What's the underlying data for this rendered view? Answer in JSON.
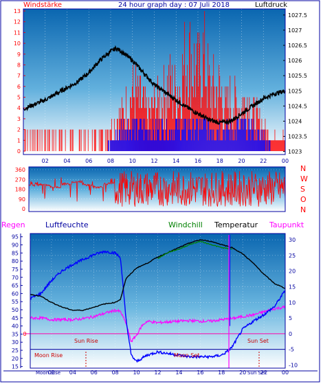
{
  "header": {
    "title": "24 hour graph day : 07 Juli 2018",
    "left_label": "Windstärke",
    "right_label": "Luftdruck"
  },
  "colors": {
    "frame": "#0000a0",
    "wind": "#ff0000",
    "gust_blue": "#0000ff",
    "pressure": "#000000",
    "direction": "#ff0000",
    "humidity": "#0000ff",
    "windchill": "#008000",
    "temperature": "#000000",
    "dewpoint": "#ff00ff",
    "rain": "#ff0000",
    "zero_line": "#ff00aa",
    "sky_top": "#0a66b0",
    "sky_bottom": "#ffffff"
  },
  "chart_data": [
    {
      "type": "line",
      "name_hint": "wind-pressure",
      "x_ticks": [
        "02",
        "04",
        "06",
        "08",
        "10",
        "12",
        "14",
        "16",
        "18",
        "20",
        "22",
        "00"
      ],
      "left_axis": {
        "labels": [
          "0",
          "1",
          "2",
          "3",
          "4",
          "5",
          "6",
          "7",
          "8",
          "9",
          "10",
          "11",
          "12",
          "13"
        ],
        "ylim": [
          0,
          13
        ]
      },
      "right_axis": {
        "labels": [
          "1023",
          "1023.5",
          "1024",
          "1024.5",
          "1025",
          "1025.5",
          "1026",
          "1026.5",
          "1027",
          "1027.5"
        ],
        "ylim": [
          1022.9,
          1027.7
        ]
      },
      "pressure": {
        "x": [
          0,
          1,
          2,
          3,
          4,
          5,
          6,
          7,
          8,
          8.5,
          9,
          10,
          11,
          12,
          13,
          14,
          15,
          16,
          17,
          18,
          19,
          20,
          21,
          22,
          23,
          24
        ],
        "y": [
          1024.4,
          1024.55,
          1024.7,
          1024.9,
          1025.1,
          1025.3,
          1025.6,
          1026.0,
          1026.3,
          1026.4,
          1026.3,
          1026.0,
          1025.6,
          1025.2,
          1024.95,
          1024.7,
          1024.45,
          1024.25,
          1024.05,
          1023.95,
          1024.0,
          1024.25,
          1024.5,
          1024.75,
          1024.9,
          1025.0
        ]
      },
      "wind_bars_x": [
        0.5,
        1.5,
        2.5,
        3.5,
        4.5,
        5.5,
        6.5,
        7.5,
        8.0,
        8.5,
        9.0,
        9.5,
        10.0,
        10.5,
        11.0,
        11.5,
        12.0,
        12.5,
        13.0,
        13.5,
        14.0,
        14.5,
        15.0,
        15.5,
        16.0,
        16.5,
        17.0,
        17.5,
        18.0,
        18.5,
        19.0,
        19.5,
        20.0,
        20.5,
        21.0,
        21.5,
        22.0,
        22.5,
        23.0,
        23.5
      ],
      "wind_bars": [
        2,
        2,
        2,
        2,
        2,
        2,
        2,
        2,
        3,
        4,
        5,
        6,
        8,
        7,
        6,
        5,
        6,
        7,
        8,
        9,
        8,
        10,
        13,
        12,
        10,
        13,
        9,
        8,
        8,
        6,
        7,
        6,
        6,
        7,
        5,
        4,
        3,
        2,
        2,
        2
      ],
      "gust_bars": [
        0,
        0,
        0,
        0,
        0,
        0,
        0,
        0,
        1,
        2,
        3,
        3,
        3,
        3,
        3,
        3,
        3,
        3,
        3,
        3,
        3,
        3,
        3,
        3,
        3,
        3,
        3,
        3,
        3,
        3,
        3,
        3,
        3,
        3,
        3,
        2,
        2,
        1,
        0,
        0
      ]
    },
    {
      "type": "line",
      "name_hint": "wind-direction",
      "y_labels": [
        "0",
        "90",
        "180",
        "270",
        "360"
      ],
      "right_letters": [
        "N",
        "W",
        "S",
        "O",
        "N"
      ],
      "ylim": [
        0,
        360
      ]
    },
    {
      "type": "line",
      "name_hint": "temperature-humidity",
      "legend": [
        "Regen",
        "Luftfeuchte",
        "Windchill",
        "Temperatur",
        "Taupunkt"
      ],
      "left_axis": {
        "labels": [
          "15",
          "20",
          "25",
          "30",
          "35",
          "40",
          "45",
          "50",
          "55",
          "60",
          "65",
          "70",
          "75",
          "80",
          "85",
          "90",
          "95"
        ],
        "ylim": [
          14,
          97
        ]
      },
      "right_axis": {
        "labels": [
          "-10",
          "-5",
          "0",
          "5",
          "10",
          "15",
          "20",
          "25",
          "30"
        ],
        "ylim": [
          -11,
          32
        ]
      },
      "zero_label": "0",
      "x_ticks": [
        "02",
        "04",
        "06",
        "08",
        "10",
        "12",
        "14",
        "16",
        "18",
        "20",
        "22",
        "00"
      ],
      "annotations": {
        "sun_rise": "Sun Rise",
        "sun_set": "Sun Set",
        "moon_rise": "Moon Rise",
        "moon_set": "Moon Set",
        "moon_rise_axis": "Moon Rise",
        "sun_set_axis": "Sun Set"
      },
      "humidity": {
        "x": [
          0,
          1,
          2,
          3,
          4,
          5,
          6,
          7,
          8,
          8.5,
          9,
          9.5,
          10,
          11,
          12,
          13,
          14,
          15,
          16,
          17,
          18,
          18.5,
          19,
          20,
          21,
          22,
          23,
          24
        ],
        "y": [
          57,
          60,
          68,
          74,
          78,
          81,
          84,
          86,
          85,
          82,
          45,
          22,
          18,
          22,
          24,
          23,
          22,
          21,
          21,
          21,
          22,
          24,
          27,
          38,
          43,
          47,
          52,
          62
        ]
      },
      "temperature": {
        "x": [
          0,
          1,
          2,
          3,
          4,
          5,
          6,
          7,
          8,
          8.5,
          9,
          10,
          11,
          12,
          13,
          14,
          15,
          16,
          17,
          18,
          19,
          20,
          21,
          22,
          23,
          24
        ],
        "y": [
          12.5,
          12.0,
          10.0,
          8.5,
          7.5,
          7.5,
          8.5,
          9.5,
          10.0,
          11.0,
          17.5,
          21.0,
          22.5,
          24.5,
          26.0,
          27.5,
          29.0,
          30.0,
          29.5,
          28.5,
          27.5,
          25.5,
          22.5,
          19.0,
          16.0,
          14.5
        ]
      },
      "windchill": {
        "x": [
          12,
          13,
          14,
          15,
          16,
          17,
          18,
          19
        ],
        "y": [
          24.0,
          26.0,
          27.0,
          28.5,
          29.5,
          28.5,
          27.5,
          27.0
        ]
      },
      "dewpoint": {
        "x": [
          0,
          1,
          2,
          3,
          4,
          5,
          6,
          7,
          8,
          8.5,
          9,
          9.5,
          10,
          10.5,
          11,
          12,
          13,
          14,
          15,
          16,
          17,
          18,
          19,
          20,
          21,
          22,
          23,
          24
        ],
        "y": [
          5,
          5,
          4.5,
          4.5,
          4.5,
          4.8,
          5.5,
          6.5,
          7.5,
          7.0,
          3.5,
          -2.5,
          -0.5,
          2.5,
          4.0,
          3.5,
          3.8,
          4.0,
          4.2,
          4.0,
          4.0,
          4.5,
          4.8,
          5.5,
          6.0,
          7.0,
          8.0,
          8.5
        ]
      },
      "rain_spike_x": 18.7
    }
  ]
}
